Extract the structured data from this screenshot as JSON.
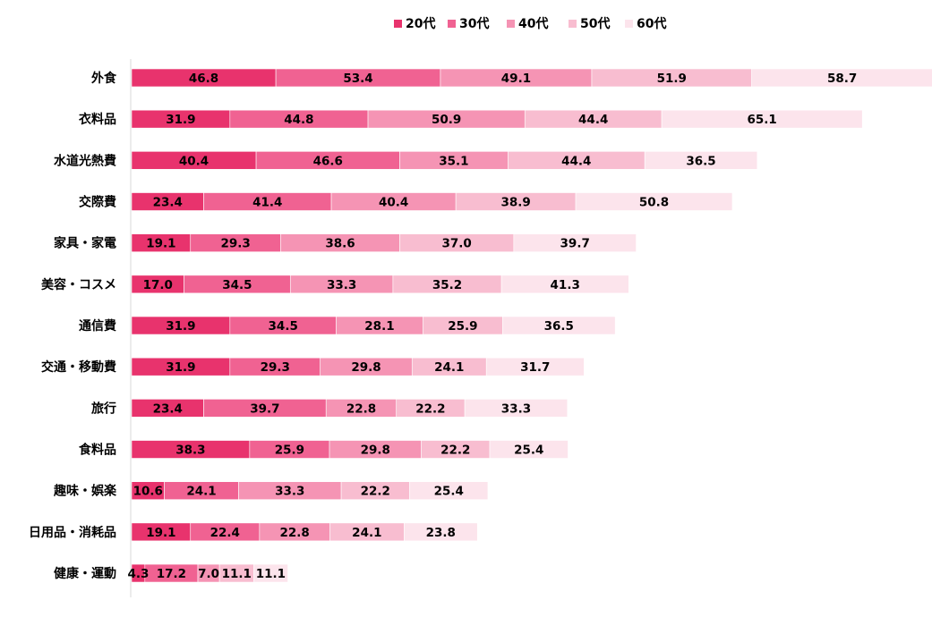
{
  "chart_data": {
    "type": "bar",
    "orientation": "horizontal",
    "stacked": true,
    "title": "",
    "xlabel": "",
    "ylabel": "",
    "legend_position": "top-center",
    "grid": false,
    "categories": [
      "外食",
      "衣料品",
      "水道光熱費",
      "交際費",
      "家具・家電",
      "美容・コスメ",
      "通信費",
      "交通・移動費",
      "旅行",
      "食料品",
      "趣味・娯楽",
      "日用品・消耗品",
      "健康・運動"
    ],
    "series": [
      {
        "name": "20代",
        "color": "#e8336d",
        "values": [
          46.8,
          31.9,
          40.4,
          23.4,
          19.1,
          17.0,
          31.9,
          31.9,
          23.4,
          38.3,
          10.6,
          19.1,
          4.3
        ]
      },
      {
        "name": "30代",
        "color": "#f06292",
        "values": [
          53.4,
          44.8,
          46.6,
          41.4,
          29.3,
          34.5,
          34.5,
          29.3,
          39.7,
          25.9,
          24.1,
          22.4,
          17.2
        ]
      },
      {
        "name": "40代",
        "color": "#f594b4",
        "values": [
          49.1,
          50.9,
          35.1,
          40.4,
          38.6,
          33.3,
          28.1,
          29.8,
          22.8,
          29.8,
          33.3,
          22.8,
          7.0
        ]
      },
      {
        "name": "50代",
        "color": "#f8bdd0",
        "values": [
          51.9,
          44.4,
          44.4,
          38.9,
          37.0,
          35.2,
          25.9,
          24.1,
          22.2,
          22.2,
          22.2,
          24.1,
          11.1
        ]
      },
      {
        "name": "60代",
        "color": "#fce4ec",
        "values": [
          58.7,
          65.1,
          36.5,
          50.8,
          39.7,
          41.3,
          36.5,
          31.7,
          33.3,
          25.4,
          25.4,
          23.8,
          11.1
        ]
      }
    ]
  }
}
